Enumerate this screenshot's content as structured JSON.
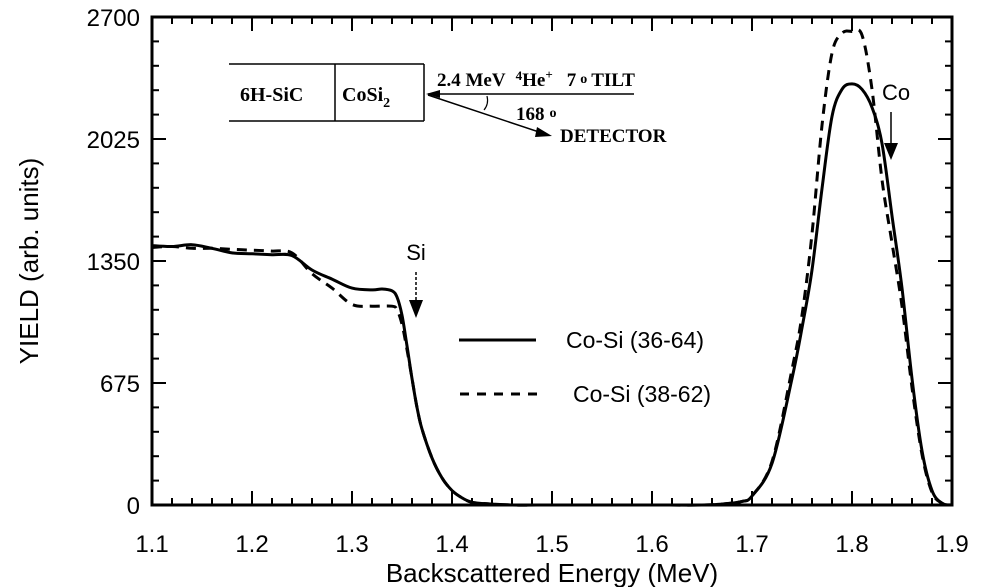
{
  "chart_data": {
    "type": "line",
    "title": "",
    "xlabel": "Backscattered Energy (MeV)",
    "ylabel": "YIELD (arb. units)",
    "xlim": [
      1.1,
      1.9
    ],
    "ylim": [
      0,
      2700
    ],
    "x_ticks": [
      "1.1",
      "1.2",
      "1.3",
      "1.4",
      "1.5",
      "1.6",
      "1.7",
      "1.8",
      "1.9"
    ],
    "y_ticks": [
      "0",
      "675",
      "1350",
      "2025",
      "2700"
    ],
    "grid": false,
    "legend_position": "center",
    "series": [
      {
        "name": "Co-Si (36-64)",
        "style": "solid",
        "x": [
          1.1,
          1.12,
          1.14,
          1.16,
          1.18,
          1.2,
          1.22,
          1.24,
          1.26,
          1.28,
          1.3,
          1.32,
          1.33,
          1.34,
          1.345,
          1.35,
          1.355,
          1.36,
          1.365,
          1.37,
          1.38,
          1.39,
          1.4,
          1.41,
          1.42,
          1.44,
          1.46,
          1.5,
          1.55,
          1.6,
          1.65,
          1.67,
          1.69,
          1.7,
          1.72,
          1.74,
          1.75,
          1.76,
          1.77,
          1.78,
          1.79,
          1.8,
          1.81,
          1.82,
          1.83,
          1.84,
          1.85,
          1.86,
          1.87,
          1.88,
          1.89,
          1.9
        ],
        "y": [
          1435,
          1430,
          1440,
          1420,
          1395,
          1390,
          1385,
          1380,
          1300,
          1250,
          1200,
          1190,
          1195,
          1185,
          1150,
          1050,
          880,
          700,
          540,
          420,
          260,
          150,
          80,
          40,
          15,
          5,
          0,
          0,
          0,
          0,
          0,
          5,
          20,
          50,
          230,
          700,
          980,
          1300,
          1750,
          2150,
          2300,
          2330,
          2300,
          2200,
          2000,
          1600,
          1200,
          700,
          300,
          80,
          10,
          0
        ]
      },
      {
        "name": "Co-Si (38-62)",
        "style": "dashed",
        "x": [
          1.1,
          1.12,
          1.14,
          1.16,
          1.18,
          1.2,
          1.22,
          1.24,
          1.26,
          1.28,
          1.3,
          1.32,
          1.34,
          1.345,
          1.35,
          1.355,
          1.36,
          1.365,
          1.37,
          1.38,
          1.39,
          1.4,
          1.41,
          1.42,
          1.44,
          1.46,
          1.5,
          1.55,
          1.6,
          1.65,
          1.67,
          1.69,
          1.7,
          1.72,
          1.74,
          1.75,
          1.76,
          1.77,
          1.78,
          1.79,
          1.8,
          1.81,
          1.82,
          1.83,
          1.84,
          1.85,
          1.86,
          1.87,
          1.88,
          1.89,
          1.9
        ],
        "y": [
          1425,
          1430,
          1420,
          1420,
          1415,
          1410,
          1405,
          1395,
          1280,
          1200,
          1110,
          1100,
          1100,
          1080,
          1000,
          860,
          700,
          540,
          420,
          260,
          150,
          80,
          40,
          15,
          5,
          0,
          0,
          0,
          0,
          0,
          5,
          20,
          50,
          240,
          750,
          1050,
          1500,
          2100,
          2500,
          2610,
          2620,
          2600,
          2300,
          1800,
          1450,
          1100,
          650,
          280,
          70,
          10,
          0
        ]
      }
    ],
    "annotations": [
      {
        "text": "Si",
        "arrow_x": 1.363,
        "arrow_from_y": 1270,
        "arrow_to_y": 950
      },
      {
        "text": "Co",
        "arrow_x": 1.84,
        "arrow_from_y": 2020,
        "arrow_to_y": 1770
      }
    ]
  },
  "inset": {
    "layer1": "6H-SiC",
    "layer2_base": "CoSi",
    "layer2_sub": "2",
    "beam_energy": "2.4 MeV",
    "ion_sup": "4",
    "ion": "He",
    "ion_charge": "+",
    "tilt_value": "7",
    "deg_symbol": "o",
    "tilt_label": "TILT",
    "scatter_angle": "168",
    "detector_label": "DETECTOR"
  }
}
